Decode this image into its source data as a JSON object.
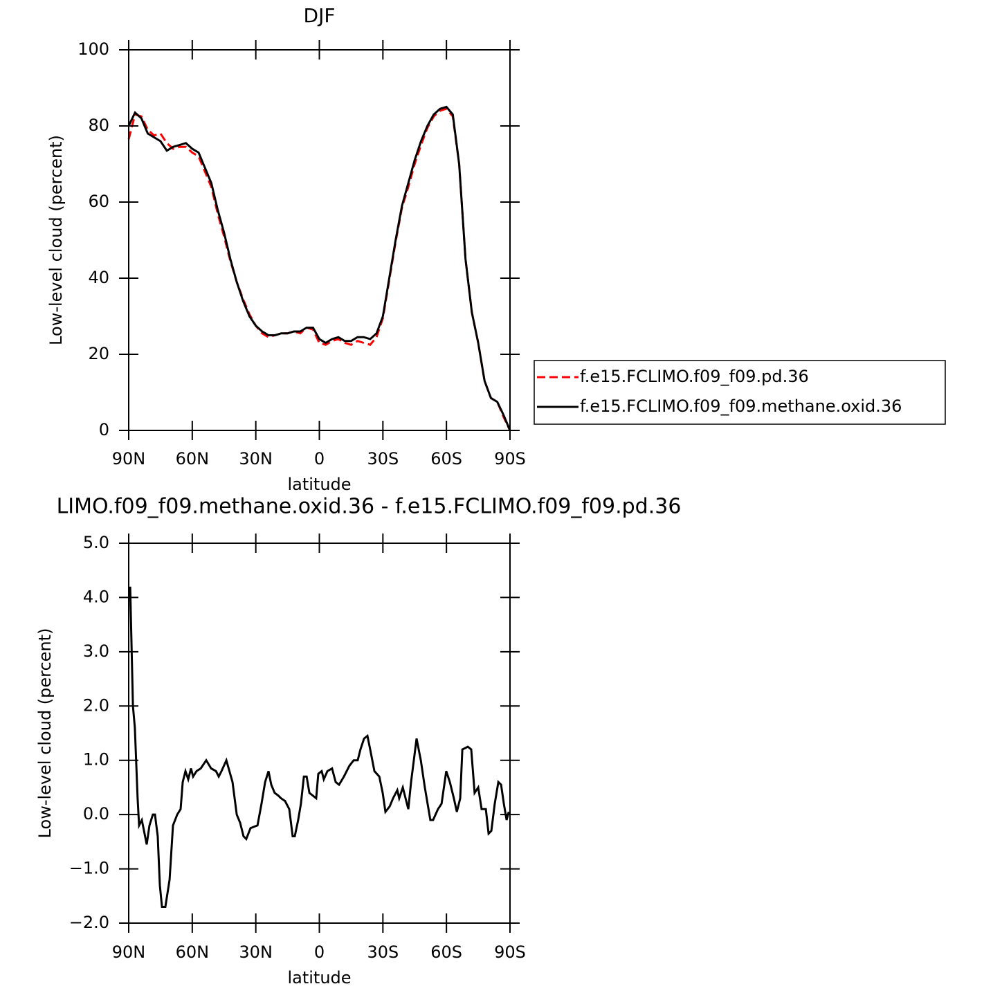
{
  "chart_data": [
    {
      "type": "line",
      "title": "DJF",
      "xlabel": "latitude",
      "ylabel": "Low-level cloud (percent)",
      "x": [
        90,
        87,
        84,
        81,
        78,
        75,
        72,
        69,
        66,
        63,
        60,
        57,
        54,
        51,
        48,
        45,
        42,
        39,
        36,
        33,
        30,
        27,
        24,
        21,
        18,
        15,
        12,
        9,
        6,
        3,
        0,
        -3,
        -6,
        -9,
        -12,
        -15,
        -18,
        -21,
        -24,
        -27,
        -30,
        -33,
        -36,
        -39,
        -42,
        -45,
        -48,
        -51,
        -54,
        -57,
        -60,
        -63,
        -66,
        -69,
        -72,
        -75,
        -78,
        -81,
        -84,
        -87,
        -90
      ],
      "series": [
        {
          "name": "f.e15.FCLIMO.f09_f09.pd.36",
          "color": "#ff0000",
          "line_style": "dashed",
          "values": [
            76.5,
            83,
            82.5,
            79,
            77.5,
            78,
            75.5,
            74,
            74.5,
            74.5,
            73,
            72,
            68,
            64,
            57,
            51,
            44.5,
            39,
            34.5,
            30.5,
            27.5,
            25.5,
            24.5,
            25,
            25.5,
            25.5,
            26,
            25.5,
            27,
            26.5,
            23,
            22.5,
            23.5,
            24,
            23,
            22.5,
            23.5,
            23,
            22.5,
            24.5,
            29.5,
            39.5,
            49.5,
            58.5,
            64,
            70,
            75,
            79.5,
            82.5,
            84,
            84.5,
            82.5,
            70,
            45,
            31,
            23,
            13,
            8.5,
            7.5,
            3.5,
            0
          ]
        },
        {
          "name": "f.e15.FCLIMO.f09_f09.methane.oxid.36",
          "color": "#000000",
          "line_style": "solid",
          "values": [
            80,
            83.5,
            82,
            78,
            77,
            76,
            73.5,
            74.5,
            75,
            75.5,
            74,
            73,
            69,
            65,
            58,
            52,
            45,
            39,
            34,
            30,
            27.5,
            26,
            25,
            25,
            25.5,
            25.5,
            26,
            26,
            27,
            27,
            24,
            23,
            24,
            24.5,
            23.5,
            23.5,
            24.5,
            24.5,
            24,
            25.5,
            30,
            40,
            50,
            59,
            65,
            71,
            76,
            80,
            83,
            84.5,
            85,
            83,
            70,
            45,
            31,
            23,
            13,
            8.5,
            7.5,
            4,
            0
          ]
        }
      ],
      "xlim": [
        90,
        -90
      ],
      "xticks": [
        {
          "value": 90,
          "label": "90N"
        },
        {
          "value": 60,
          "label": "60N"
        },
        {
          "value": 30,
          "label": "30N"
        },
        0,
        {
          "value": -30,
          "label": "30S"
        },
        {
          "value": -60,
          "label": "60S"
        },
        {
          "value": -90,
          "label": "90S"
        }
      ],
      "ylim": [
        0,
        100
      ],
      "yticks": [
        0,
        20,
        40,
        60,
        80,
        100
      ],
      "legend": "right"
    },
    {
      "type": "line",
      "title": "LIMO.f09_f09.methane.oxid.36 - f.e15.FCLIMO.f09_f09.pd.36",
      "xlabel": "latitude",
      "ylabel": "Low-level cloud (percent)",
      "x": [
        89.3,
        88.0,
        87.1,
        85.8,
        85.1,
        83.8,
        81.5,
        80.2,
        78.6,
        77.6,
        76.3,
        75.3,
        74.3,
        72.7,
        70.7,
        69.1,
        67.1,
        65.5,
        64.5,
        63.2,
        61.9,
        60.6,
        59.6,
        58.0,
        56.0,
        53.4,
        51.1,
        48.8,
        47.5,
        46.2,
        43.9,
        41.0,
        39.0,
        37.4,
        35.8,
        34.5,
        32.5,
        29.2,
        27.3,
        25.6,
        24.0,
        22.7,
        21.1,
        19.4,
        18.1,
        16.2,
        14.2,
        12.6,
        11.6,
        10.0,
        8.7,
        7.3,
        6.0,
        4.7,
        3.1,
        1.5,
        0.5,
        -1.1,
        -2.1,
        -3.8,
        -6.0,
        -7.7,
        -9.3,
        -11.6,
        -14.2,
        -16.2,
        -18.1,
        -19.4,
        -21.1,
        -22.7,
        -24.0,
        -26.0,
        -28.3,
        -29.9,
        -31.2,
        -33.2,
        -34.8,
        -36.8,
        -37.7,
        -39.4,
        -40.7,
        -42.0,
        -43.3,
        -44.6,
        -45.9,
        -47.9,
        -49.8,
        -52.4,
        -53.7,
        -56.0,
        -57.7,
        -59.9,
        -61.6,
        -63.5,
        -64.9,
        -66.5,
        -67.5,
        -70.1,
        -71.7,
        -73.3,
        -75.0,
        -76.6,
        -78.6,
        -79.9,
        -81.2,
        -82.8,
        -84.5,
        -85.8,
        -87.1,
        -88.4,
        -89.4
      ],
      "series": [
        {
          "color": "#000000",
          "line_style": "solid",
          "values": [
            4.2,
            2.0,
            1.6,
            0.3,
            -0.2,
            -0.1,
            -0.55,
            -0.2,
            0,
            0,
            -0.4,
            -1.3,
            -1.7,
            -1.7,
            -1.2,
            -0.2,
            0,
            0.1,
            0.6,
            0.8,
            0.65,
            0.85,
            0.7,
            0.8,
            0.85,
            1.0,
            0.85,
            0.8,
            0.7,
            0.8,
            1.0,
            0.6,
            0,
            -0.15,
            -0.4,
            -0.45,
            -0.25,
            -0.2,
            0.2,
            0.6,
            0.8,
            0.55,
            0.4,
            0.35,
            0.3,
            0.25,
            0.1,
            -0.4,
            -0.4,
            -0.1,
            0.2,
            0.7,
            0.7,
            0.4,
            0.35,
            0.3,
            0.75,
            0.8,
            0.65,
            0.8,
            0.85,
            0.6,
            0.55,
            0.7,
            0.9,
            1.0,
            1.0,
            1.2,
            1.4,
            1.45,
            1.2,
            0.8,
            0.7,
            0.4,
            0.05,
            0.15,
            0.3,
            0.45,
            0.3,
            0.5,
            0.3,
            0.1,
            0.6,
            1.0,
            1.4,
            1.0,
            0.5,
            -0.1,
            -0.1,
            0.1,
            0.2,
            0.8,
            0.6,
            0.3,
            0.05,
            0.3,
            1.2,
            1.25,
            1.2,
            0.4,
            0.5,
            0.1,
            0.1,
            -0.35,
            -0.3,
            0.2,
            0.6,
            0.55,
            0.2,
            -0.1,
            0.05
          ]
        }
      ],
      "xlim": [
        90,
        -90
      ],
      "xticks": [
        {
          "value": 90,
          "label": "90N"
        },
        {
          "value": 60,
          "label": "60N"
        },
        {
          "value": 30,
          "label": "30N"
        },
        0,
        {
          "value": -30,
          "label": "30S"
        },
        {
          "value": -60,
          "label": "60S"
        },
        {
          "value": -90,
          "label": "90S"
        }
      ],
      "ylim": [
        -2,
        5
      ],
      "yticks": [
        {
          "value": -2,
          "label": "−2.0"
        },
        {
          "value": -1,
          "label": "−1.0"
        },
        {
          "value": 0,
          "label": "0.0"
        },
        {
          "value": 1,
          "label": "1.0"
        },
        {
          "value": 2,
          "label": "2.0"
        },
        {
          "value": 3,
          "label": "3.0"
        },
        {
          "value": 4,
          "label": "4.0"
        },
        {
          "value": 5,
          "label": "5.0"
        }
      ]
    }
  ]
}
